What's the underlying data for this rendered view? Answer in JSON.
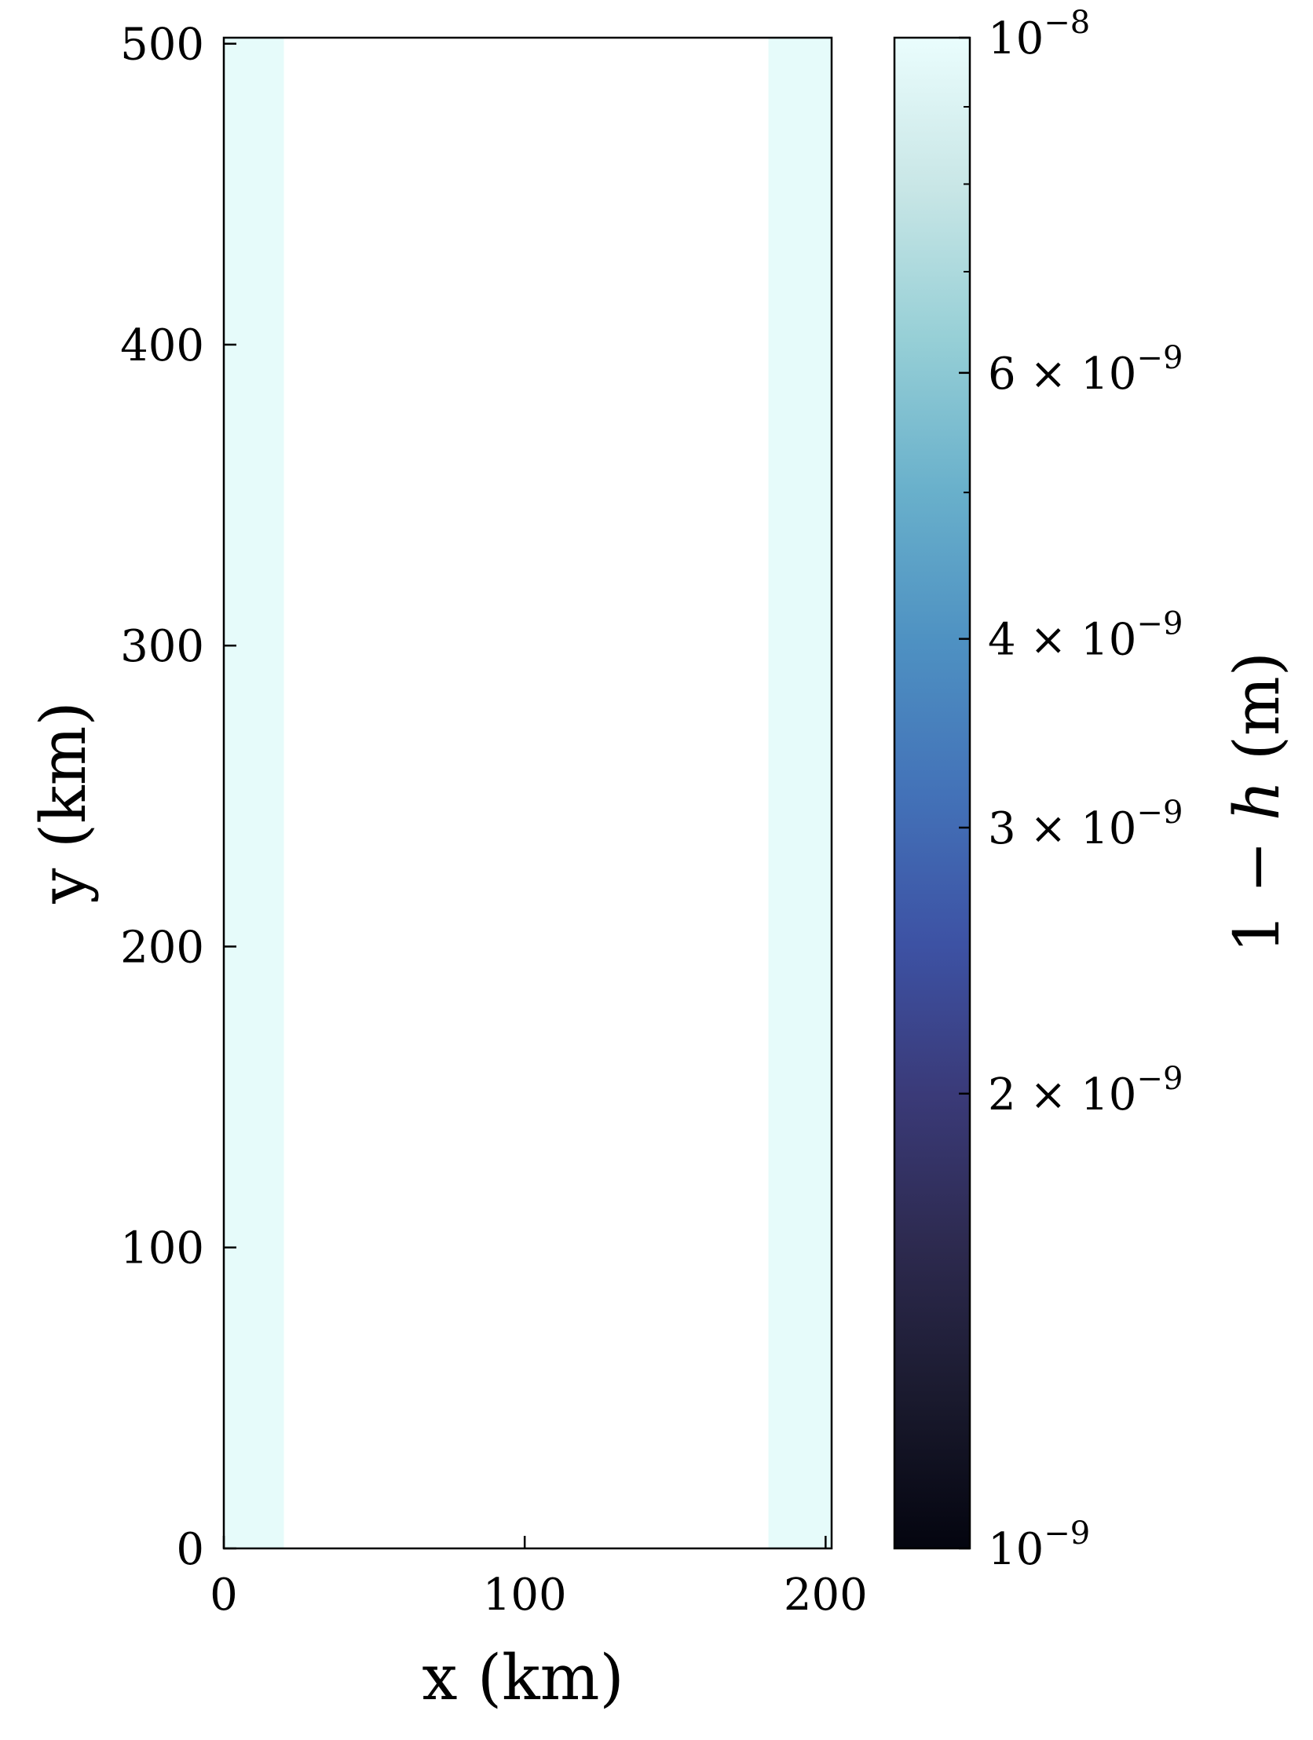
{
  "chart_data": {
    "type": "heatmap",
    "x_axis": {
      "label": "x (km)",
      "range": [
        0,
        202
      ],
      "ticks": [
        0,
        100,
        200
      ],
      "tick_labels": [
        "0",
        "100",
        "200"
      ]
    },
    "y_axis": {
      "label": "y (km)",
      "range": [
        0,
        502
      ],
      "ticks": [
        0,
        100,
        200,
        300,
        400,
        500
      ],
      "tick_labels": [
        "0",
        "100",
        "200",
        "300",
        "400",
        "500"
      ]
    },
    "regions": [
      {
        "x_range": [
          0,
          20
        ],
        "y_range": [
          0,
          502
        ],
        "value": "≥1e-8",
        "color": "#e6fbfa"
      },
      {
        "x_range": [
          20,
          181
        ],
        "y_range": [
          0,
          502
        ],
        "value": "≈0 (masked)",
        "color": "#ffffff"
      },
      {
        "x_range": [
          181,
          202
        ],
        "y_range": [
          0,
          502
        ],
        "value": "≥1e-8",
        "color": "#e6fbfa"
      }
    ],
    "colorbar": {
      "label_prefix": "1 − ",
      "label_var": "h",
      "label_suffix": " (m)",
      "scale": "log",
      "range": [
        1e-09,
        1e-08
      ],
      "colormap": "ice",
      "color_stops": [
        "#04050f",
        "#1a1a2e",
        "#2d2a4f",
        "#3a3a78",
        "#3d52a4",
        "#4372b8",
        "#4e91c2",
        "#69b0cb",
        "#96cfd6",
        "#c8e6e6",
        "#eafdfd"
      ],
      "labeled_ticks": [
        {
          "value": 1e-09,
          "mantissa": "",
          "exponent": "−9"
        },
        {
          "value": 2e-09,
          "mantissa": "2",
          "exponent": "−9"
        },
        {
          "value": 3e-09,
          "mantissa": "3",
          "exponent": "−9"
        },
        {
          "value": 4e-09,
          "mantissa": "4",
          "exponent": "−9"
        },
        {
          "value": 6e-09,
          "mantissa": "6",
          "exponent": "−9"
        },
        {
          "value": 1e-08,
          "mantissa": "",
          "exponent": "−8"
        }
      ],
      "minor_ticks": [
        5e-09,
        7e-09,
        8e-09,
        9e-09
      ]
    }
  }
}
